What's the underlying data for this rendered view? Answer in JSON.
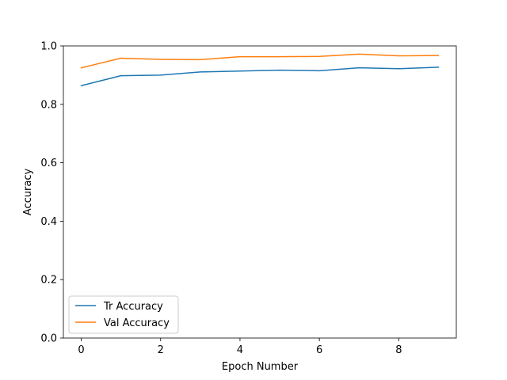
{
  "chart_data": {
    "type": "line",
    "title": "",
    "xlabel": "Epoch Number",
    "ylabel": "Accuracy",
    "x": [
      0,
      1,
      2,
      3,
      4,
      5,
      6,
      7,
      8,
      9
    ],
    "xlim": [
      -0.45,
      9.45
    ],
    "ylim": [
      0.0,
      1.0
    ],
    "xticks": [
      0,
      2,
      4,
      6,
      8
    ],
    "yticks": [
      0.0,
      0.2,
      0.4,
      0.6,
      0.8,
      1.0
    ],
    "xtick_labels": [
      "0",
      "2",
      "4",
      "6",
      "8"
    ],
    "ytick_labels": [
      "0.0",
      "0.2",
      "0.4",
      "0.6",
      "0.8",
      "1.0"
    ],
    "grid": false,
    "legend_position": "lower-left",
    "series": [
      {
        "name": "Tr Accuracy",
        "color": "#1f77b4",
        "values": [
          0.864,
          0.898,
          0.9,
          0.911,
          0.914,
          0.917,
          0.915,
          0.925,
          0.922,
          0.927
        ]
      },
      {
        "name": "Val Accuracy",
        "color": "#ff7f0e",
        "values": [
          0.925,
          0.958,
          0.954,
          0.953,
          0.963,
          0.963,
          0.964,
          0.972,
          0.966,
          0.967
        ]
      }
    ]
  }
}
